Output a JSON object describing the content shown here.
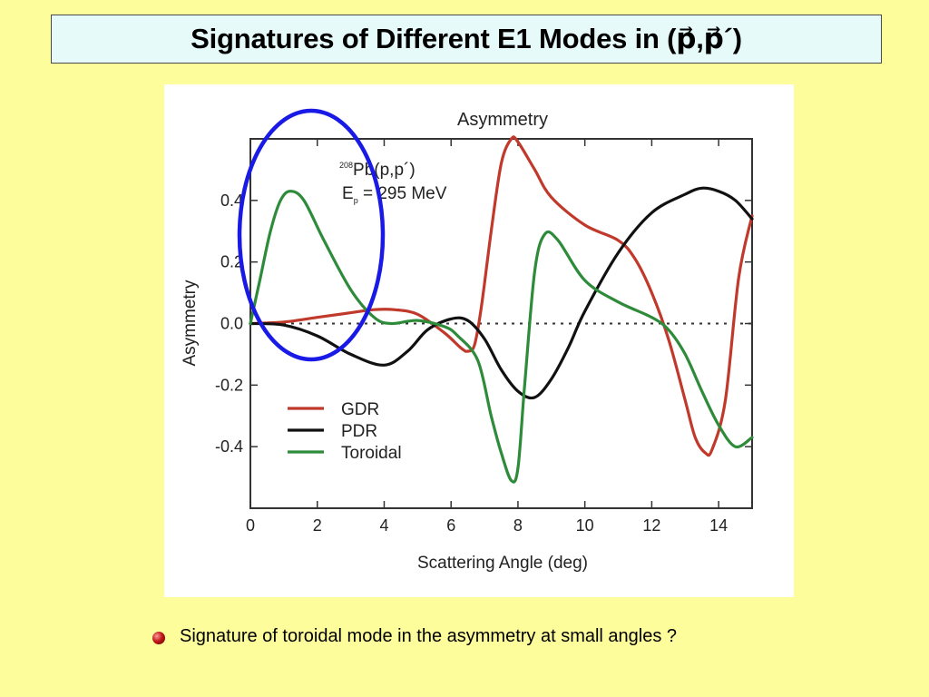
{
  "slide": {
    "title": "Signatures of Different E1 Modes in (p⃗,p⃗´)",
    "bullet": "Signature of toroidal mode in the asymmetry at small angles ?"
  },
  "chart_data": {
    "type": "line",
    "title": "Asymmetry",
    "xlabel": "Scattering Angle (deg)",
    "ylabel": "Asymmetry",
    "xlim": [
      0,
      15
    ],
    "ylim": [
      -0.6,
      0.6
    ],
    "xticks": [
      "0",
      "2",
      "4",
      "6",
      "8",
      "10",
      "12",
      "14"
    ],
    "yticks": [
      "0.4",
      "0.2",
      "0.0",
      "-0.2",
      "-0.4"
    ],
    "annotation": {
      "line1_super": "208",
      "line1": "Pb(p,p´)",
      "line2_main": "E",
      "line2_sub": "p",
      "line2_rest": " = 295 MeV"
    },
    "zero_line": "dotted",
    "highlight": "blue ellipse around the Toroidal peak at small angles",
    "legend_position": "bottom-left",
    "series": [
      {
        "name": "GDR",
        "color": "#c0392b",
        "x": [
          0,
          1,
          2,
          3,
          3.7,
          4.3,
          5,
          5.8,
          6.3,
          6.5,
          6.7,
          6.9,
          7.2,
          7.5,
          7.8,
          8.0,
          8.5,
          9,
          10,
          11,
          11.5,
          12,
          12.5,
          13,
          13.3,
          13.6,
          13.8,
          14.2,
          14.6,
          15
        ],
        "y": [
          0.0,
          0.005,
          0.02,
          0.035,
          0.045,
          0.045,
          0.03,
          -0.03,
          -0.08,
          -0.09,
          -0.07,
          0.05,
          0.3,
          0.52,
          0.6,
          0.59,
          0.5,
          0.41,
          0.32,
          0.27,
          0.21,
          0.1,
          -0.05,
          -0.25,
          -0.37,
          -0.42,
          -0.41,
          -0.25,
          0.15,
          0.35
        ]
      },
      {
        "name": "PDR",
        "color": "#111111",
        "x": [
          0,
          1,
          2,
          3,
          4,
          4.7,
          5.3,
          6,
          6.5,
          7,
          7.5,
          8,
          8.5,
          9,
          9.5,
          10,
          11,
          12,
          13,
          13.5,
          14,
          14.5,
          15
        ],
        "y": [
          0.0,
          -0.005,
          -0.04,
          -0.1,
          -0.135,
          -0.09,
          -0.02,
          0.015,
          0.01,
          -0.05,
          -0.15,
          -0.22,
          -0.24,
          -0.18,
          -0.08,
          0.04,
          0.23,
          0.36,
          0.42,
          0.44,
          0.43,
          0.4,
          0.34
        ]
      },
      {
        "name": "Toroidal",
        "color": "#2e8b3a",
        "x": [
          0,
          0.3,
          0.6,
          0.9,
          1.2,
          1.6,
          2.2,
          3,
          3.7,
          4.2,
          5,
          5.8,
          6.2,
          6.8,
          7.2,
          7.5,
          7.8,
          8.0,
          8.2,
          8.5,
          8.8,
          9.2,
          10,
          11,
          12,
          12.5,
          13,
          13.5,
          14,
          14.5,
          15
        ],
        "y": [
          0.0,
          0.15,
          0.3,
          0.4,
          0.43,
          0.4,
          0.27,
          0.11,
          0.02,
          0.0,
          0.01,
          -0.01,
          -0.04,
          -0.12,
          -0.3,
          -0.42,
          -0.51,
          -0.47,
          -0.2,
          0.17,
          0.29,
          0.27,
          0.14,
          0.07,
          0.02,
          -0.02,
          -0.1,
          -0.22,
          -0.33,
          -0.4,
          -0.37
        ]
      }
    ]
  }
}
